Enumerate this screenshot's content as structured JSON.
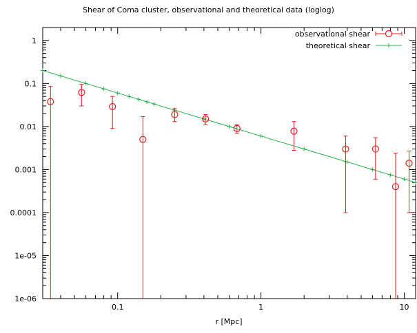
{
  "chart_data": {
    "type": "scatter",
    "title": "Shear of Coma cluster, observational and theoretical data (loglog)",
    "xlabel": "r [Mpc]",
    "ylabel": "",
    "xscale": "log",
    "yscale": "log",
    "xlim": [
      0.03,
      12
    ],
    "ylim": [
      1e-06,
      2
    ],
    "grid": false,
    "legend_position": "top-right",
    "x_tick_labels": [
      {
        "value": 0.1,
        "label": "0.1"
      },
      {
        "value": 1,
        "label": "1"
      },
      {
        "value": 10,
        "label": "10"
      }
    ],
    "y_tick_labels": [
      {
        "value": 1,
        "label": "1"
      },
      {
        "value": 0.1,
        "label": "0.1"
      },
      {
        "value": 0.01,
        "label": "0.01"
      },
      {
        "value": 0.001,
        "label": "0.001"
      },
      {
        "value": 0.0001,
        "label": "0.0001"
      },
      {
        "value": 1e-05,
        "label": "1e-05"
      },
      {
        "value": 1e-06,
        "label": "1e-06"
      }
    ],
    "series": [
      {
        "name": "observational shear",
        "style": "points-errorbars",
        "color": "#e41a1c",
        "points": [
          {
            "x": 0.034,
            "y": 0.038,
            "ylow": 1e-06,
            "yhigh": 0.085
          },
          {
            "x": 0.056,
            "y": 0.062,
            "ylow": 0.03,
            "yhigh": 0.095
          },
          {
            "x": 0.092,
            "y": 0.029,
            "ylow": 0.009,
            "yhigh": 0.05
          },
          {
            "x": 0.15,
            "y": 0.005,
            "ylow": 1e-06,
            "yhigh": 0.017
          },
          {
            "x": 0.25,
            "y": 0.019,
            "ylow": 0.013,
            "yhigh": 0.026
          },
          {
            "x": 0.41,
            "y": 0.015,
            "ylow": 0.011,
            "yhigh": 0.019
          },
          {
            "x": 0.68,
            "y": 0.009,
            "ylow": 0.007,
            "yhigh": 0.011
          },
          {
            "x": 1.7,
            "y": 0.0078,
            "ylow": 0.0028,
            "yhigh": 0.013
          },
          {
            "x": 3.9,
            "y": 0.003,
            "ylow": 0.0001,
            "yhigh": 0.006
          },
          {
            "x": 6.3,
            "y": 0.003,
            "ylow": 0.0006,
            "yhigh": 0.0055
          },
          {
            "x": 8.7,
            "y": 0.0004,
            "ylow": 1e-06,
            "yhigh": 0.0024
          },
          {
            "x": 10.8,
            "y": 0.0014,
            "ylow": 0.0001,
            "yhigh": 0.0027
          }
        ]
      },
      {
        "name": "theoretical shear",
        "style": "line-points",
        "color": "#22b24c",
        "x": [
          0.03,
          0.04,
          0.06,
          0.08,
          0.1,
          0.12,
          0.14,
          0.16,
          0.18,
          0.25,
          0.4,
          0.6,
          1,
          2,
          4,
          6,
          8,
          10,
          12
        ],
        "y": [
          0.2,
          0.15,
          0.1,
          0.075,
          0.06,
          0.05,
          0.0429,
          0.0375,
          0.0333,
          0.024,
          0.015,
          0.01,
          0.006,
          0.003,
          0.0015,
          0.001,
          0.00075,
          0.0006,
          0.0005
        ]
      }
    ]
  }
}
